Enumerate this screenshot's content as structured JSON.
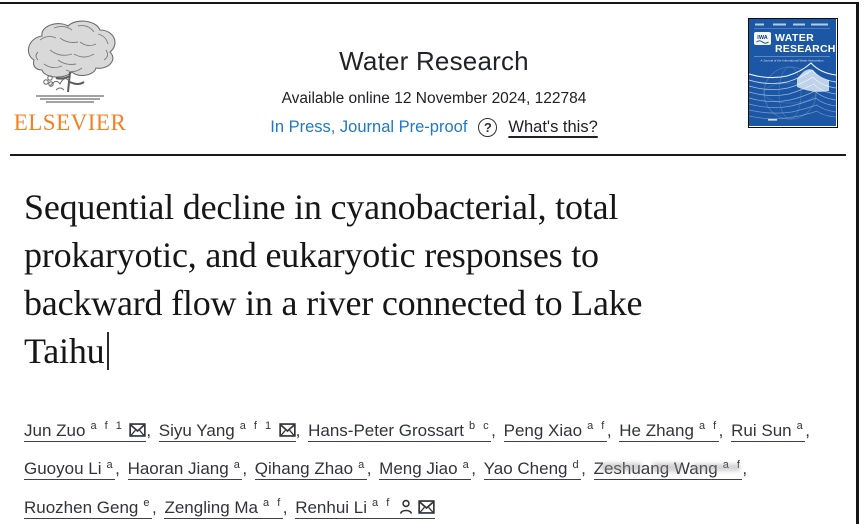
{
  "header": {
    "publisher_name": "ELSEVIER",
    "journal_title": "Water Research",
    "availability": "Available online 12 November 2024, 122784",
    "status_link": "In Press, Journal Pre-proof",
    "help_icon": "?",
    "help_link": "What's this?",
    "status_color": "#1e7ac4",
    "publisher_color": "#f58025"
  },
  "cover": {
    "title_line1": "WATER",
    "title_line2": "RESEARCH",
    "logo_text": "IWA",
    "subtitle": "A Journal of the International Water Association",
    "bg_color": "#1c57a6"
  },
  "article": {
    "title_lines": [
      "Sequential decline in cyanobacterial, total",
      "prokaryotic, and eukaryotic responses to",
      "backward flow in a river connected to Lake",
      "Taihu"
    ]
  },
  "authors": {
    "separator": ", ",
    "list": [
      {
        "name": "Jun Zuo",
        "sup": "a f 1",
        "icons": [
          "envelope"
        ]
      },
      {
        "name": "Siyu Yang",
        "sup": "a f 1",
        "icons": [
          "envelope"
        ]
      },
      {
        "name": "Hans-Peter Grossart",
        "sup": "b c",
        "icons": []
      },
      {
        "name": "Peng Xiao",
        "sup": "a f",
        "icons": []
      },
      {
        "name": "He Zhang",
        "sup": "a f",
        "icons": []
      },
      {
        "name": "Rui Sun",
        "sup": "a",
        "icons": []
      },
      {
        "name": "Guoyou Li",
        "sup": "a",
        "icons": []
      },
      {
        "name": "Haoran Jiang",
        "sup": "a",
        "icons": []
      },
      {
        "name": "Qihang Zhao",
        "sup": "a",
        "icons": []
      },
      {
        "name": "Meng Jiao",
        "sup": "a",
        "icons": []
      },
      {
        "name": "Yao Cheng",
        "sup": "d",
        "icons": []
      },
      {
        "name": "Zeshuang Wang",
        "sup": "a f",
        "icons": []
      },
      {
        "name": "Ruozhen Geng",
        "sup": "e",
        "icons": []
      },
      {
        "name": "Zengling Ma",
        "sup": "a f",
        "icons": []
      },
      {
        "name": "Renhui Li",
        "sup": "a f",
        "icons": [
          "person",
          "envelope"
        ]
      }
    ]
  }
}
